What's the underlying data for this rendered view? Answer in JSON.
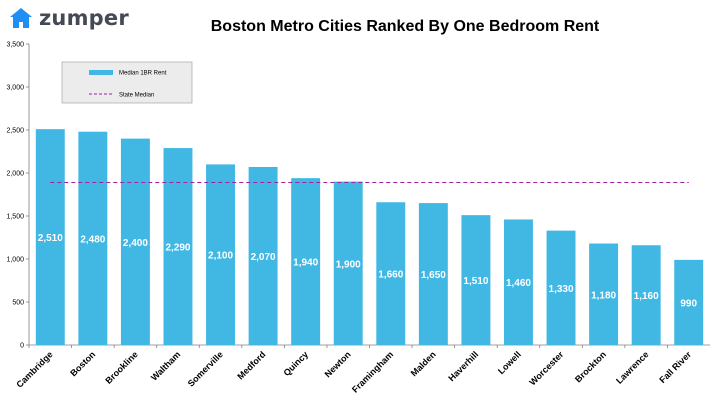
{
  "brand": {
    "name": "zumper",
    "icon": "house-icon",
    "icon_color": "#1f8ef5"
  },
  "chart_data": {
    "type": "bar",
    "title": "Boston Metro Cities Ranked By One Bedroom Rent",
    "categories": [
      "Cambridge",
      "Boston",
      "Brookline",
      "Waltham",
      "Somerville",
      "Medford",
      "Quincy",
      "Newton",
      "Framingham",
      "Malden",
      "Haverhill",
      "Lowell",
      "Worcester",
      "Brockton",
      "Lawrence",
      "Fall River"
    ],
    "series": [
      {
        "name": "Median 1BR Rent",
        "values": [
          2510,
          2480,
          2400,
          2290,
          2100,
          2070,
          1940,
          1900,
          1660,
          1650,
          1510,
          1460,
          1330,
          1180,
          1160,
          990
        ],
        "color": "#41b8e4"
      }
    ],
    "data_labels": [
      "2,510",
      "2,480",
      "2,400",
      "2,290",
      "2,100",
      "2,070",
      "1,940",
      "1,900",
      "1,660",
      "1,650",
      "1,510",
      "1,460",
      "1,330",
      "1,180",
      "1,160",
      "990"
    ],
    "reference_line": {
      "name": "State Median",
      "value": 1890,
      "color": "#a020a0",
      "style": "dashed"
    },
    "ylim": [
      0,
      3500
    ],
    "yticks": [
      0,
      500,
      1000,
      1500,
      2000,
      2500,
      3000,
      3500
    ],
    "ytick_labels": [
      "0",
      "500",
      "1,000",
      "1,500",
      "2,000",
      "2,500",
      "3,000",
      "3,500"
    ],
    "xlabel": "",
    "ylabel": "",
    "grid": false,
    "legend_position": "top-left"
  }
}
